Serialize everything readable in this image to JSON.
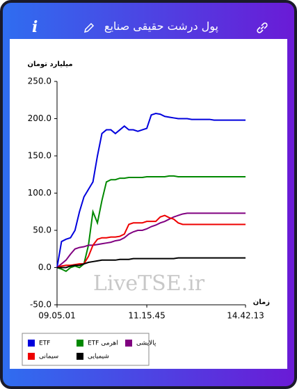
{
  "header": {
    "title": "پول درشت حقیقی صنایع",
    "info": "i"
  },
  "chart_data": {
    "type": "line",
    "ylabel": "میلیارد تومان",
    "xlabel": "زمان",
    "watermark": "LiveTSE.ir",
    "categories": [
      "09.05.01",
      null,
      null,
      null,
      null,
      null,
      null,
      null,
      null,
      null,
      null,
      null,
      null,
      null,
      null,
      null,
      null,
      null,
      null,
      null,
      "11.15.45",
      null,
      null,
      null,
      null,
      null,
      null,
      null,
      null,
      null,
      null,
      null,
      null,
      null,
      null,
      null,
      null,
      null,
      null,
      null,
      null,
      null,
      "14.42.13"
    ],
    "ylim": [
      -50,
      250
    ],
    "yticks": [
      {
        "value": -50,
        "label": "-50.0"
      },
      {
        "value": 0,
        "label": "0.0"
      },
      {
        "value": 50,
        "label": "50.0"
      },
      {
        "value": 100,
        "label": "100.0"
      },
      {
        "value": 150,
        "label": "150.0"
      },
      {
        "value": 200,
        "label": "200.0"
      },
      {
        "value": 250,
        "label": "250.0"
      }
    ],
    "grid": false,
    "series": [
      {
        "name": "ETF",
        "color": "#0000dd",
        "values": [
          0,
          35,
          38,
          40,
          50,
          75,
          95,
          105,
          115,
          150,
          180,
          185,
          185,
          180,
          185,
          190,
          185,
          185,
          183,
          185,
          187,
          205,
          207,
          206,
          203,
          202,
          201,
          200,
          200,
          200,
          199,
          199,
          199,
          199,
          199,
          198,
          198,
          198,
          198,
          198,
          198,
          198,
          198
        ]
      },
      {
        "name": "ETF اهرمی",
        "color": "#008800",
        "values": [
          0,
          -2,
          -5,
          0,
          2,
          0,
          5,
          30,
          75,
          60,
          90,
          115,
          118,
          118,
          120,
          120,
          121,
          121,
          121,
          121,
          122,
          122,
          122,
          122,
          122,
          123,
          123,
          122,
          122,
          122,
          122,
          122,
          122,
          122,
          122,
          122,
          122,
          122,
          122,
          122,
          122,
          122,
          122
        ]
      },
      {
        "name": "پالایشی",
        "color": "#800080",
        "values": [
          0,
          5,
          10,
          18,
          25,
          27,
          28,
          30,
          30,
          31,
          32,
          33,
          34,
          36,
          37,
          40,
          45,
          48,
          50,
          50,
          52,
          55,
          57,
          60,
          62,
          65,
          68,
          70,
          72,
          73,
          73,
          73,
          73,
          73,
          73,
          73,
          73,
          73,
          73,
          73,
          73,
          73,
          73
        ]
      },
      {
        "name": "سیمانی",
        "color": "#ee0000",
        "values": [
          0,
          2,
          3,
          3,
          4,
          5,
          5,
          15,
          30,
          38,
          40,
          40,
          41,
          41,
          42,
          45,
          58,
          60,
          60,
          60,
          62,
          62,
          62,
          68,
          70,
          67,
          65,
          60,
          58,
          58,
          58,
          58,
          58,
          58,
          58,
          58,
          58,
          58,
          58,
          58,
          58,
          58,
          58
        ]
      },
      {
        "name": "شیمیایی",
        "color": "#000000",
        "values": [
          0,
          0,
          0,
          2,
          3,
          3,
          5,
          7,
          8,
          9,
          10,
          10,
          10,
          10,
          11,
          11,
          11,
          12,
          12,
          12,
          12,
          12,
          12,
          12,
          12,
          12,
          12,
          13,
          13,
          13,
          13,
          13,
          13,
          13,
          13,
          13,
          13,
          13,
          13,
          13,
          13,
          13,
          13
        ]
      }
    ]
  }
}
